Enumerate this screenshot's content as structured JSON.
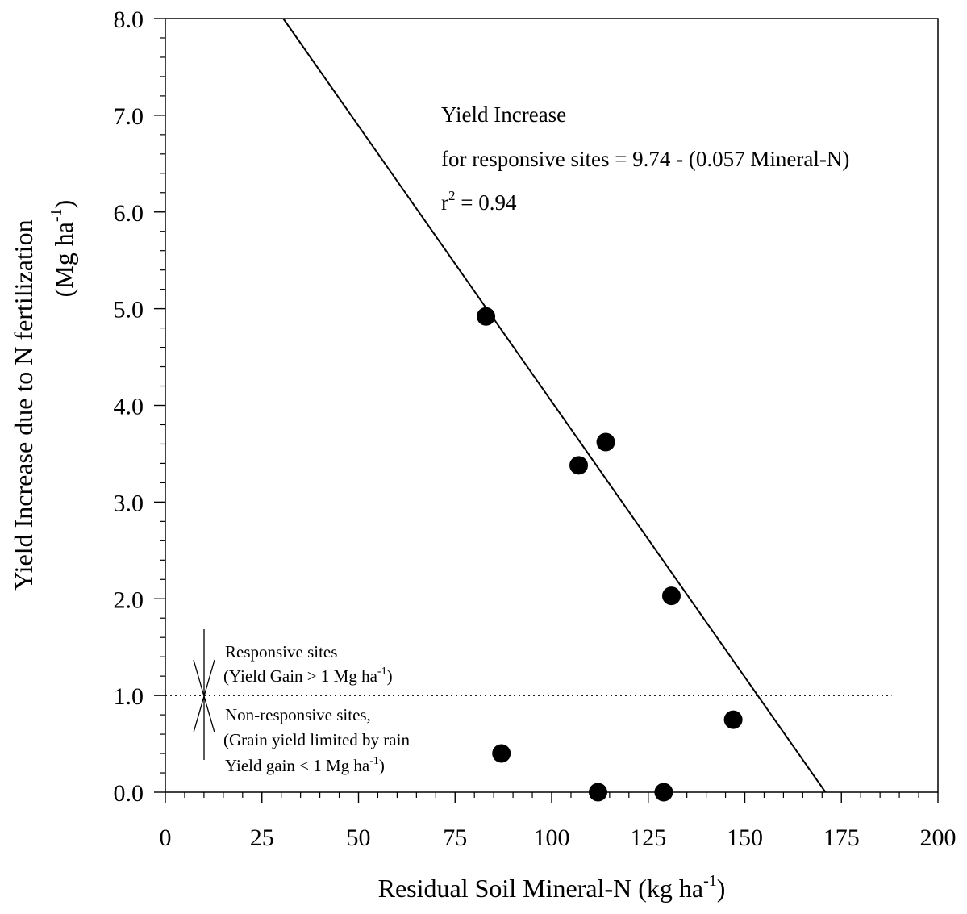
{
  "chart_data": {
    "type": "scatter",
    "xlabel": {
      "main": "Residual Soil Mineral-N (kg ha",
      "sup": "-1",
      "close": ")"
    },
    "ylabel": {
      "line1": "Yield Increase due to N fertilization",
      "line2_main": "(Mg ha",
      "line2_sup": "-1",
      "line2_close": ")"
    },
    "xlim": [
      0,
      200
    ],
    "ylim": [
      0,
      8
    ],
    "x_ticks": [
      {
        "value": 0,
        "label": "0"
      },
      {
        "value": 25,
        "label": "25"
      },
      {
        "value": 50,
        "label": "50"
      },
      {
        "value": 75,
        "label": "75"
      },
      {
        "value": 100,
        "label": "100"
      },
      {
        "value": 125,
        "label": "125"
      },
      {
        "value": 150,
        "label": "150"
      },
      {
        "value": 175,
        "label": "175"
      },
      {
        "value": 200,
        "label": "200"
      }
    ],
    "y_ticks": [
      {
        "value": 0,
        "label": "0.0"
      },
      {
        "value": 1,
        "label": "1.0"
      },
      {
        "value": 2,
        "label": "2.0"
      },
      {
        "value": 3,
        "label": "3.0"
      },
      {
        "value": 4,
        "label": "4.0"
      },
      {
        "value": 5,
        "label": "5.0"
      },
      {
        "value": 6,
        "label": "6.0"
      },
      {
        "value": 7,
        "label": "7.0"
      },
      {
        "value": 8,
        "label": "8.0"
      }
    ],
    "x_minor_step": 5,
    "y_minor_step": 0.2,
    "grid": false,
    "points": [
      {
        "x": 83,
        "y": 4.92
      },
      {
        "x": 87,
        "y": 0.4
      },
      {
        "x": 107,
        "y": 3.38
      },
      {
        "x": 112,
        "y": 0.0
      },
      {
        "x": 114,
        "y": 3.62
      },
      {
        "x": 129,
        "y": 0.0
      },
      {
        "x": 131,
        "y": 2.03
      },
      {
        "x": 147,
        "y": 0.75
      }
    ],
    "regression": {
      "intercept": 9.74,
      "slope": -0.057
    },
    "threshold": {
      "y": 1.0,
      "x_end": 188
    },
    "equation": {
      "line1": "Yield Increase",
      "line2": "for responsive sites = 9.74 - (0.057 Mineral-N)",
      "line3_r": "r",
      "line3_sup": "2",
      "line3_rest": " = 0.94"
    },
    "annotations": {
      "responsive_line1": "Responsive sites",
      "responsive_line2_main": "(Yield Gain > 1 Mg ha",
      "responsive_line2_sup": "-1",
      "responsive_line2_close": ")",
      "nonresp_line1": "Non-responsive sites,",
      "nonresp_line2": "(Grain yield limited by rain",
      "nonresp_line3_main": "Yield gain < 1 Mg ha",
      "nonresp_line3_sup": "-1",
      "nonresp_line3_close": ")"
    },
    "marker_color": "#000000",
    "line_color": "#000000"
  }
}
